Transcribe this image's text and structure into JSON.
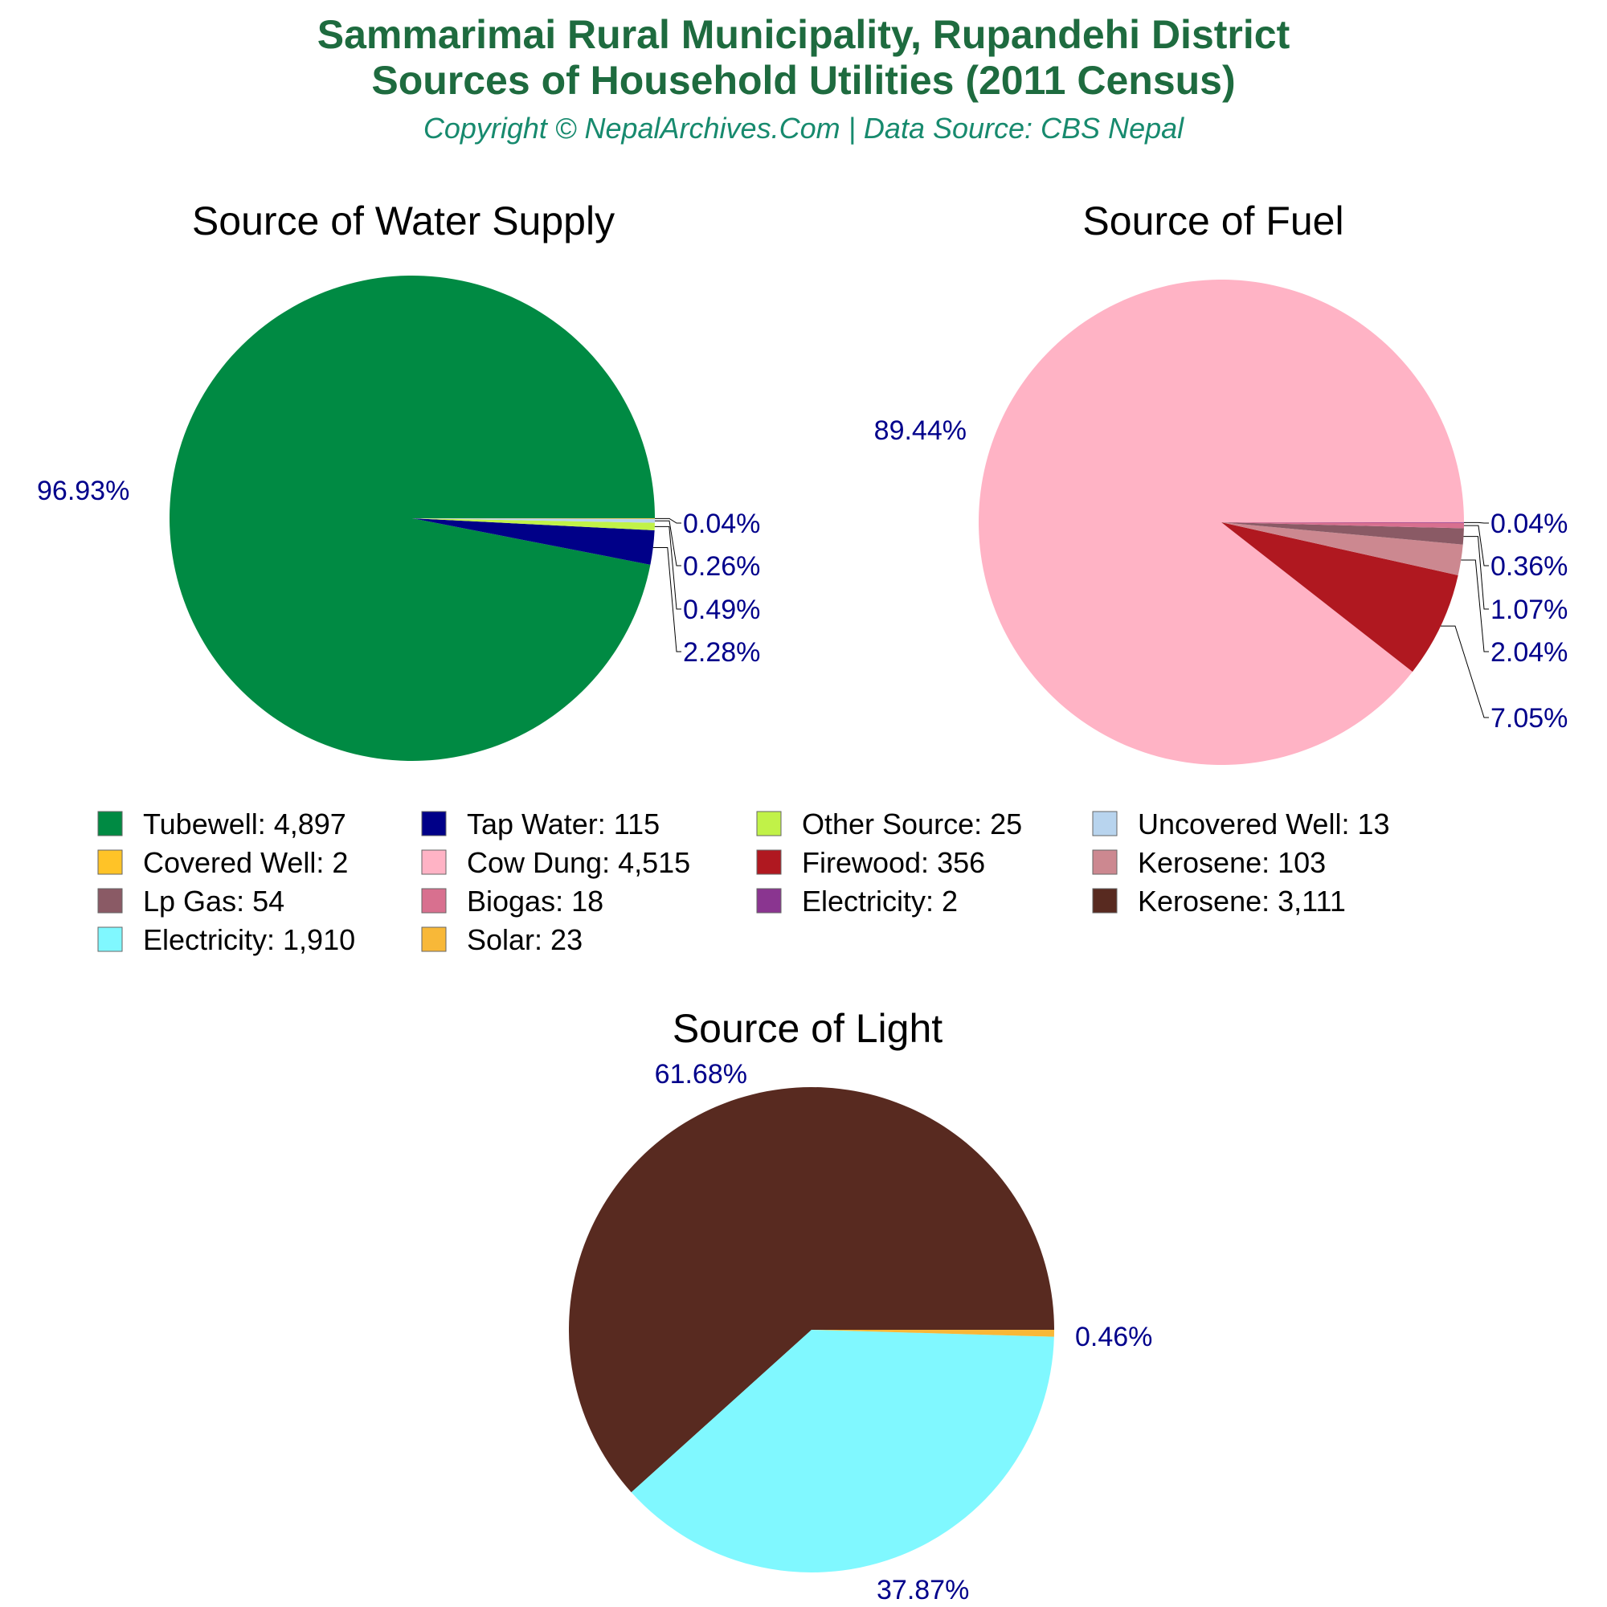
{
  "header": {
    "title_line1": "Sammarimai Rural Municipality, Rupandehi District",
    "title_line2": "Sources of Household Utilities (2011 Census)",
    "subtitle": "Copyright © NepalArchives.Com | Data Source: CBS Nepal",
    "title_color": "#1e6b3f",
    "subtitle_color": "#178a6e"
  },
  "label_color": "#00008b",
  "chart_data": [
    {
      "type": "pie",
      "title": "Source of Water Supply",
      "slices": [
        {
          "name": "Tubewell",
          "value": 4897,
          "percent": "96.93%",
          "color": "#008a43"
        },
        {
          "name": "Tap Water",
          "value": 115,
          "percent": "2.28%",
          "color": "#000088"
        },
        {
          "name": "Other Source",
          "value": 25,
          "percent": "0.49%",
          "color": "#c1f248"
        },
        {
          "name": "Uncovered Well",
          "value": 13,
          "percent": "0.26%",
          "color": "#b8d4ee"
        },
        {
          "name": "Covered Well",
          "value": 2,
          "percent": "0.04%",
          "color": "#ffc327"
        }
      ]
    },
    {
      "type": "pie",
      "title": "Source of Fuel",
      "slices": [
        {
          "name": "Cow Dung",
          "value": 4515,
          "percent": "89.44%",
          "color": "#ffb3c5"
        },
        {
          "name": "Firewood",
          "value": 356,
          "percent": "7.05%",
          "color": "#b01820"
        },
        {
          "name": "Kerosene",
          "value": 103,
          "percent": "2.04%",
          "color": "#cc8890"
        },
        {
          "name": "Lp Gas",
          "value": 54,
          "percent": "1.07%",
          "color": "#8a5a65"
        },
        {
          "name": "Biogas",
          "value": 18,
          "percent": "0.36%",
          "color": "#d8708f"
        },
        {
          "name": "Electricity",
          "value": 2,
          "percent": "0.04%",
          "color": "#8a3590"
        }
      ]
    },
    {
      "type": "pie",
      "title": "Source of Light",
      "slices": [
        {
          "name": "Kerosene",
          "value": 3111,
          "percent": "61.68%",
          "color": "#582a20"
        },
        {
          "name": "Electricity",
          "value": 1910,
          "percent": "37.87%",
          "color": "#80f8ff"
        },
        {
          "name": "Solar",
          "value": 23,
          "percent": "0.46%",
          "color": "#f8b838"
        }
      ]
    }
  ],
  "legend": [
    {
      "label": "Tubewell: 4,897",
      "color": "#008a43"
    },
    {
      "label": "Tap Water: 115",
      "color": "#000088"
    },
    {
      "label": "Other Source: 25",
      "color": "#c1f248"
    },
    {
      "label": "Uncovered Well: 13",
      "color": "#b8d4ee"
    },
    {
      "label": "Covered Well: 2",
      "color": "#ffc327"
    },
    {
      "label": "Cow Dung: 4,515",
      "color": "#ffb3c5"
    },
    {
      "label": "Firewood: 356",
      "color": "#b01820"
    },
    {
      "label": "Kerosene: 103",
      "color": "#cc8890"
    },
    {
      "label": "Lp Gas: 54",
      "color": "#8a5a65"
    },
    {
      "label": "Biogas: 18",
      "color": "#d8708f"
    },
    {
      "label": "Electricity: 2",
      "color": "#8a3590"
    },
    {
      "label": "Kerosene: 3,111",
      "color": "#582a20"
    },
    {
      "label": "Electricity: 1,910",
      "color": "#80f8ff"
    },
    {
      "label": "Solar: 23",
      "color": "#f8b838"
    }
  ]
}
